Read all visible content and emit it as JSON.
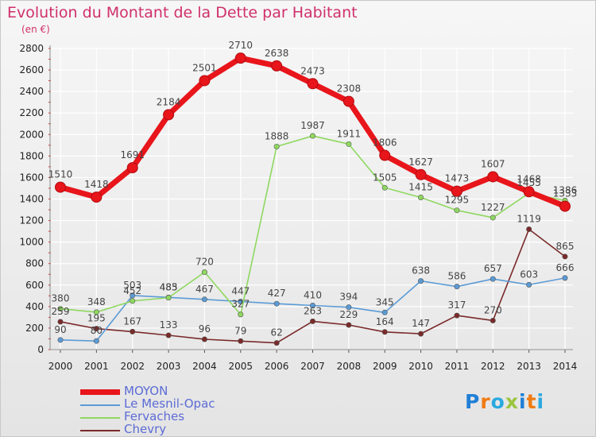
{
  "header": {
    "title": "Evolution du Montant de la Dette par Habitant",
    "subtitle": "(en €)"
  },
  "logo": {
    "text": "Proxiti",
    "letter_colors": [
      "#1f7fd6",
      "#f07b12",
      "#29a9e0",
      "#9bc53d",
      "#1f7fd6",
      "#f07b12",
      "#29a9e0"
    ]
  },
  "colors": {
    "title": "#d0306a",
    "grid": "#ffffff",
    "axis": "#8c8c8c",
    "value_label": "#444444"
  },
  "chart_data": {
    "type": "line",
    "title": "Evolution du Montant de la Dette par Habitant",
    "subtitle": "(en €)",
    "xlabel": "",
    "ylabel": "",
    "categories": [
      "2000",
      "2001",
      "2002",
      "2003",
      "2004",
      "2005",
      "2006",
      "2007",
      "2008",
      "2009",
      "2010",
      "2011",
      "2012",
      "2013",
      "2014"
    ],
    "ylim": [
      0,
      2800
    ],
    "yticks": [
      0,
      200,
      400,
      600,
      800,
      1000,
      1200,
      1400,
      1600,
      1800,
      2000,
      2200,
      2400,
      2600,
      2800
    ],
    "grid": true,
    "legend_position": "bottom-left",
    "series": [
      {
        "name": "MOYON",
        "color": "#e8151b",
        "values": [
          1510,
          1418,
          1691,
          2184,
          2501,
          2710,
          2638,
          2473,
          2308,
          1806,
          1627,
          1473,
          1607,
          1468,
          1333
        ]
      },
      {
        "name": "Le Mesnil-Opac",
        "color": "#5b9bd5",
        "values": [
          90,
          80,
          503,
          485,
          467,
          447,
          427,
          410,
          394,
          345,
          638,
          586,
          657,
          603,
          666
        ]
      },
      {
        "name": "Fervaches",
        "color": "#8fd860",
        "values": [
          380,
          348,
          452,
          483,
          720,
          327,
          1888,
          1987,
          1911,
          1505,
          1415,
          1295,
          1227,
          1455,
          1386
        ]
      },
      {
        "name": "Chevry",
        "color": "#7b2a2a",
        "values": [
          259,
          195,
          167,
          133,
          96,
          79,
          62,
          263,
          229,
          164,
          147,
          317,
          270,
          1119,
          865
        ]
      }
    ]
  }
}
